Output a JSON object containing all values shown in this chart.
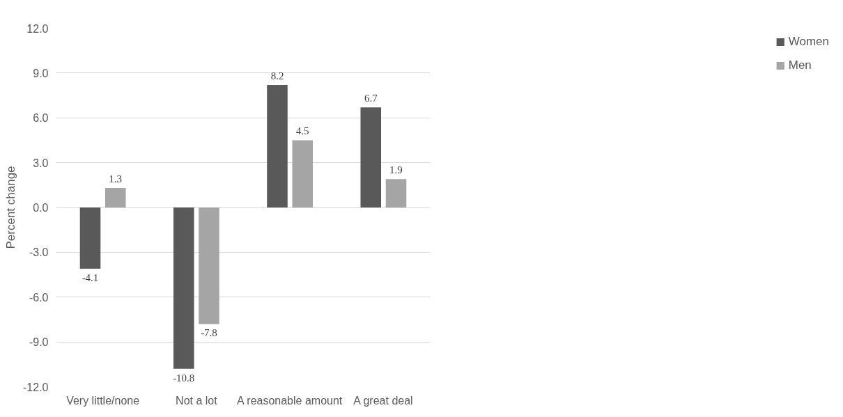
{
  "chart_data": {
    "type": "bar",
    "ylabel": "Percent change",
    "categories": [
      "Very little/none",
      "Not a lot",
      "A reasonable amount",
      "A great deal"
    ],
    "series": [
      {
        "name": "Women",
        "color": "#595959",
        "values": [
          -4.1,
          -10.8,
          8.2,
          6.7
        ]
      },
      {
        "name": "Men",
        "color": "#a5a5a5",
        "values": [
          1.3,
          -7.8,
          4.5,
          1.9
        ]
      }
    ],
    "ylim": [
      -12,
      12
    ],
    "yticks": [
      {
        "value": -12,
        "label": "-12.0"
      },
      {
        "value": -9,
        "label": "-9.0"
      },
      {
        "value": -6,
        "label": "-6.0"
      },
      {
        "value": -3,
        "label": "-3.0"
      },
      {
        "value": 0,
        "label": "0.0"
      },
      {
        "value": 3,
        "label": "3.0"
      },
      {
        "value": 6,
        "label": "6.0"
      },
      {
        "value": 9,
        "label": "9.0"
      },
      {
        "value": 12,
        "label": "12.0"
      }
    ],
    "grid": "y",
    "legend": "right",
    "data_labels": true
  }
}
